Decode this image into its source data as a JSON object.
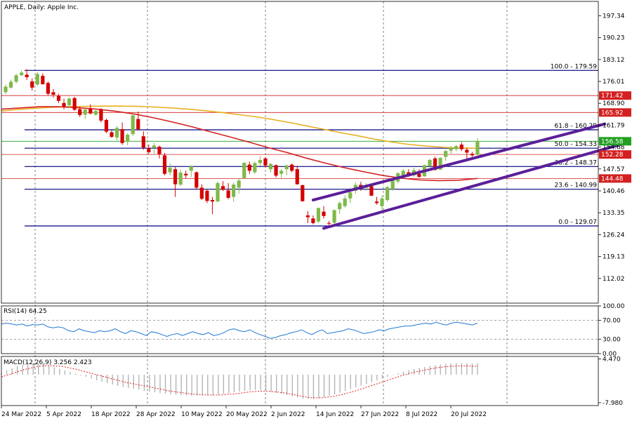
{
  "chart_data": {
    "type": "candlestick",
    "title": "APPLE, Daily:  Apple Inc.",
    "ylim": [
      104,
      202
    ],
    "y_ticks": [
      "197.34",
      "190.23",
      "183.12",
      "176.01",
      "168.90",
      "161.79",
      "154.68",
      "147.57",
      "140.46",
      "133.35",
      "126.24",
      "119.13",
      "112.02"
    ],
    "x_labels": [
      "24 Mar 2022",
      "5 Apr 2022",
      "18 Apr 2022",
      "28 Apr 2022",
      "10 May 2022",
      "20 May 2022",
      "2 Jun 2022",
      "14 Jun 2022",
      "27 Jun 2022",
      "8 Jul 2022",
      "20 Jul 2022"
    ],
    "candles": [
      {
        "o": 172.5,
        "h": 175.0,
        "l": 171.8,
        "c": 174.3
      },
      {
        "o": 174.0,
        "h": 176.6,
        "l": 173.7,
        "c": 175.9
      },
      {
        "o": 175.9,
        "h": 178.5,
        "l": 175.3,
        "c": 178.0
      },
      {
        "o": 178.0,
        "h": 179.6,
        "l": 177.8,
        "c": 178.9
      },
      {
        "o": 178.2,
        "h": 180.0,
        "l": 176.5,
        "c": 177.4
      },
      {
        "o": 176.0,
        "h": 177.0,
        "l": 173.0,
        "c": 174.0
      },
      {
        "o": 175.0,
        "h": 179.0,
        "l": 174.5,
        "c": 178.4
      },
      {
        "o": 177.8,
        "h": 178.6,
        "l": 175.0,
        "c": 175.1
      },
      {
        "o": 175.5,
        "h": 176.0,
        "l": 171.5,
        "c": 172.0
      },
      {
        "o": 172.5,
        "h": 173.5,
        "l": 170.8,
        "c": 171.7
      },
      {
        "o": 171.3,
        "h": 172.0,
        "l": 169.0,
        "c": 169.7
      },
      {
        "o": 169.0,
        "h": 170.4,
        "l": 167.0,
        "c": 167.9
      },
      {
        "o": 168.3,
        "h": 170.9,
        "l": 167.5,
        "c": 170.4
      },
      {
        "o": 170.6,
        "h": 171.0,
        "l": 166.5,
        "c": 166.8
      },
      {
        "o": 167.0,
        "h": 167.8,
        "l": 164.5,
        "c": 165.1
      },
      {
        "o": 165.2,
        "h": 167.0,
        "l": 163.8,
        "c": 166.9
      },
      {
        "o": 167.2,
        "h": 168.6,
        "l": 165.3,
        "c": 165.6
      },
      {
        "o": 165.2,
        "h": 167.0,
        "l": 164.9,
        "c": 166.4
      },
      {
        "o": 167.0,
        "h": 167.3,
        "l": 162.7,
        "c": 163.3
      },
      {
        "o": 163.5,
        "h": 163.9,
        "l": 159.2,
        "c": 159.7
      },
      {
        "o": 159.5,
        "h": 160.3,
        "l": 157.7,
        "c": 158.0
      },
      {
        "o": 157.8,
        "h": 161.5,
        "l": 156.8,
        "c": 160.9
      },
      {
        "o": 160.5,
        "h": 162.7,
        "l": 155.4,
        "c": 156.0
      },
      {
        "o": 156.5,
        "h": 159.2,
        "l": 155.3,
        "c": 158.7
      },
      {
        "o": 158.9,
        "h": 165.7,
        "l": 158.3,
        "c": 165.0
      },
      {
        "o": 163.8,
        "h": 166.2,
        "l": 160.0,
        "c": 160.5
      },
      {
        "o": 158.2,
        "h": 159.8,
        "l": 153.8,
        "c": 154.5
      },
      {
        "o": 154.3,
        "h": 155.5,
        "l": 152.5,
        "c": 153.0
      },
      {
        "o": 154.5,
        "h": 156.0,
        "l": 152.5,
        "c": 155.2
      },
      {
        "o": 154.8,
        "h": 155.2,
        "l": 151.0,
        "c": 152.4
      },
      {
        "o": 152.0,
        "h": 152.8,
        "l": 145.5,
        "c": 146.0
      },
      {
        "o": 146.5,
        "h": 149.5,
        "l": 145.5,
        "c": 148.0
      },
      {
        "o": 147.5,
        "h": 148.2,
        "l": 138.5,
        "c": 142.6
      },
      {
        "o": 142.5,
        "h": 147.4,
        "l": 142.0,
        "c": 146.4
      },
      {
        "o": 146.0,
        "h": 147.0,
        "l": 144.5,
        "c": 145.5
      },
      {
        "o": 147.0,
        "h": 148.8,
        "l": 145.0,
        "c": 148.4
      },
      {
        "o": 146.5,
        "h": 146.8,
        "l": 140.9,
        "c": 141.5
      },
      {
        "o": 141.5,
        "h": 142.6,
        "l": 137.5,
        "c": 137.9
      },
      {
        "o": 140.5,
        "h": 141.0,
        "l": 136.5,
        "c": 137.2
      },
      {
        "o": 137.5,
        "h": 138.5,
        "l": 132.9,
        "c": 137.0
      },
      {
        "o": 137.0,
        "h": 143.5,
        "l": 136.8,
        "c": 143.0
      },
      {
        "o": 142.0,
        "h": 143.6,
        "l": 140.4,
        "c": 140.8
      },
      {
        "o": 140.6,
        "h": 143.0,
        "l": 137.8,
        "c": 138.2
      },
      {
        "o": 138.5,
        "h": 143.2,
        "l": 137.0,
        "c": 142.5
      },
      {
        "o": 141.5,
        "h": 144.5,
        "l": 139.6,
        "c": 143.8
      },
      {
        "o": 144.5,
        "h": 149.7,
        "l": 144.5,
        "c": 149.6
      },
      {
        "o": 149.0,
        "h": 150.0,
        "l": 146.0,
        "c": 147.0
      },
      {
        "o": 146.5,
        "h": 150.0,
        "l": 146.0,
        "c": 149.5
      },
      {
        "o": 149.5,
        "h": 151.7,
        "l": 148.5,
        "c": 150.5
      },
      {
        "o": 151.0,
        "h": 151.5,
        "l": 148.0,
        "c": 148.7
      },
      {
        "o": 147.5,
        "h": 149.5,
        "l": 146.5,
        "c": 149.2
      },
      {
        "o": 148.8,
        "h": 149.0,
        "l": 144.8,
        "c": 145.4
      },
      {
        "o": 146.0,
        "h": 147.5,
        "l": 144.5,
        "c": 147.0
      },
      {
        "o": 147.5,
        "h": 149.0,
        "l": 145.5,
        "c": 148.7
      },
      {
        "o": 149.0,
        "h": 149.3,
        "l": 146.5,
        "c": 147.0
      },
      {
        "o": 147.5,
        "h": 148.6,
        "l": 142.5,
        "c": 142.6
      },
      {
        "o": 142.3,
        "h": 142.5,
        "l": 137.0,
        "c": 137.1
      },
      {
        "o": 132.5,
        "h": 133.9,
        "l": 130.0,
        "c": 131.9
      },
      {
        "o": 131.5,
        "h": 132.5,
        "l": 129.6,
        "c": 130.0
      },
      {
        "o": 130.5,
        "h": 135.0,
        "l": 130.0,
        "c": 134.9
      },
      {
        "o": 133.7,
        "h": 135.5,
        "l": 131.5,
        "c": 132.3
      },
      {
        "o": 130.0,
        "h": 130.7,
        "l": 129.0,
        "c": 129.8
      },
      {
        "o": 130.1,
        "h": 134.5,
        "l": 129.8,
        "c": 134.2
      },
      {
        "o": 134.5,
        "h": 137.0,
        "l": 133.0,
        "c": 136.5
      },
      {
        "o": 135.5,
        "h": 139.0,
        "l": 135.0,
        "c": 138.0
      },
      {
        "o": 138.0,
        "h": 141.5,
        "l": 136.5,
        "c": 140.0
      },
      {
        "o": 140.5,
        "h": 143.3,
        "l": 139.5,
        "c": 142.4
      },
      {
        "o": 142.4,
        "h": 143.4,
        "l": 140.5,
        "c": 141.1
      },
      {
        "o": 141.5,
        "h": 143.0,
        "l": 140.5,
        "c": 142.2
      },
      {
        "o": 142.0,
        "h": 142.5,
        "l": 138.7,
        "c": 138.9
      },
      {
        "o": 137.0,
        "h": 138.5,
        "l": 136.0,
        "c": 136.5
      },
      {
        "o": 135.5,
        "h": 139.0,
        "l": 133.8,
        "c": 138.0
      },
      {
        "o": 137.5,
        "h": 142.0,
        "l": 137.0,
        "c": 141.7
      },
      {
        "o": 141.0,
        "h": 144.3,
        "l": 140.5,
        "c": 143.9
      },
      {
        "o": 143.5,
        "h": 146.5,
        "l": 143.0,
        "c": 146.2
      },
      {
        "o": 145.5,
        "h": 147.5,
        "l": 145.0,
        "c": 147.0
      },
      {
        "o": 146.5,
        "h": 147.5,
        "l": 145.0,
        "c": 145.5
      },
      {
        "o": 145.5,
        "h": 148.0,
        "l": 145.0,
        "c": 147.2
      },
      {
        "o": 146.0,
        "h": 147.5,
        "l": 144.7,
        "c": 145.0
      },
      {
        "o": 145.2,
        "h": 149.0,
        "l": 145.0,
        "c": 148.8
      },
      {
        "o": 148.5,
        "h": 150.9,
        "l": 148.0,
        "c": 150.5
      },
      {
        "o": 151.0,
        "h": 151.5,
        "l": 147.0,
        "c": 147.3
      },
      {
        "o": 147.4,
        "h": 151.4,
        "l": 147.2,
        "c": 151.2
      },
      {
        "o": 151.5,
        "h": 153.8,
        "l": 150.2,
        "c": 153.4
      },
      {
        "o": 153.5,
        "h": 155.0,
        "l": 152.5,
        "c": 154.5
      },
      {
        "o": 154.0,
        "h": 155.4,
        "l": 153.3,
        "c": 155.0
      },
      {
        "o": 155.5,
        "h": 156.3,
        "l": 153.4,
        "c": 154.0
      },
      {
        "o": 153.8,
        "h": 154.5,
        "l": 151.0,
        "c": 152.9
      },
      {
        "o": 152.5,
        "h": 153.1,
        "l": 151.5,
        "c": 152.0
      },
      {
        "o": 152.2,
        "h": 157.6,
        "l": 152.0,
        "c": 156.6
      }
    ],
    "ma_series": [
      {
        "color": "#e8b020",
        "values": [
          166.4,
          166.9,
          167.3,
          167.6,
          167.8,
          167.9,
          168.0,
          168.0,
          167.9,
          167.7,
          167.4,
          167.0,
          166.5,
          165.9,
          165.2,
          164.5,
          163.6,
          162.6,
          161.5,
          160.4,
          159.3,
          158.3,
          157.2,
          156.3,
          155.5,
          155.0,
          154.6,
          154.4,
          154.3
        ]
      },
      {
        "color": "#d42020",
        "values": [
          167.0,
          167.4,
          167.8,
          167.8,
          167.5,
          167.0,
          166.3,
          165.4,
          164.2,
          162.8,
          161.3,
          159.6,
          158.0,
          156.3,
          154.5,
          152.9,
          151.1,
          149.5,
          148.0,
          146.7,
          145.5,
          144.6,
          144.0,
          143.8,
          143.9,
          144.5
        ]
      }
    ],
    "fibonacci": [
      {
        "label": "100.0 - 179.59",
        "value": 179.59
      },
      {
        "label": "61.8 - 160.29",
        "value": 160.29
      },
      {
        "label": "50.0 - 154.33",
        "value": 154.33
      },
      {
        "label": "38.2 - 148.37",
        "value": 148.37
      },
      {
        "label": "23.6 - 140.99",
        "value": 140.99
      },
      {
        "label": "0.0 - 129.07",
        "value": 129.07
      }
    ],
    "hlines": [
      {
        "value": 171.42,
        "label": "171.42",
        "color": "#d42020"
      },
      {
        "value": 165.92,
        "label": "165.92",
        "color": "#d42020"
      },
      {
        "value": 152.28,
        "label": "152.28",
        "color": "#d42020"
      },
      {
        "value": 144.48,
        "label": "144.48",
        "color": "#d42020"
      },
      {
        "value": 156.58,
        "label": "156.58",
        "color": "#21a021"
      }
    ],
    "channel": [
      {
        "from": [
          58,
          137.5
        ],
        "to": [
          113,
          162.2
        ]
      },
      {
        "from": [
          60,
          128.3
        ],
        "to": [
          117,
          156.0
        ]
      }
    ],
    "colors": {
      "bull": "#7fb94a",
      "bear": "#d40000",
      "fib": "#000080",
      "channel": "#5b1f99",
      "rsi": "#1f77d4",
      "macd_signal": "#e02020",
      "macd_hist": "#b0b0b0"
    },
    "rsi": {
      "label": "RSI(14) 64.25",
      "ylim": [
        0,
        100
      ],
      "ticks": [
        "100.00",
        "70.00",
        "30.00",
        "0.00"
      ],
      "levels": [
        70,
        30
      ],
      "values": [
        62,
        64,
        62,
        60,
        62,
        58,
        61,
        60,
        62,
        56,
        54,
        56,
        54,
        48,
        46,
        52,
        48,
        46,
        44,
        48,
        46,
        48,
        52,
        46,
        42,
        48,
        46,
        42,
        38,
        46,
        44,
        40,
        36,
        40,
        42,
        38,
        42,
        46,
        42,
        40,
        44,
        38,
        40,
        44,
        50,
        52,
        48,
        46,
        50,
        44,
        40,
        36,
        32,
        34,
        38,
        40,
        44,
        46,
        50,
        44,
        40,
        46,
        50,
        42,
        44,
        46,
        48,
        52,
        50,
        46,
        42,
        44,
        46,
        50,
        48,
        52,
        54,
        56,
        58,
        58,
        60,
        62,
        64,
        62,
        66,
        62,
        60,
        64,
        66,
        64,
        62,
        60,
        64
      ]
    },
    "macd": {
      "label": "MACD(12,26,9) 3.256 2.423",
      "ylim": [
        -8.8,
        5.2
      ],
      "ticks": [
        "4.470",
        "-7.980"
      ],
      "hist": [
        0.5,
        1.2,
        1.8,
        2.4,
        2.9,
        3.1,
        3.2,
        3.0,
        2.8,
        2.5,
        2.1,
        1.7,
        1.2,
        0.8,
        0.3,
        -0.2,
        -0.6,
        -1.1,
        -1.6,
        -2.0,
        -2.4,
        -2.8,
        -3.2,
        -3.5,
        -3.8,
        -4.0,
        -4.3,
        -4.6,
        -4.8,
        -5.0,
        -5.2,
        -5.4,
        -5.6,
        -5.7,
        -5.8,
        -5.9,
        -6.0,
        -6.0,
        -6.0,
        -5.9,
        -5.8,
        -5.7,
        -5.5,
        -5.3,
        -5.0,
        -4.8,
        -4.6,
        -4.4,
        -4.3,
        -4.4,
        -4.6,
        -4.9,
        -5.2,
        -5.5,
        -5.8,
        -6.2,
        -6.5,
        -6.8,
        -6.9,
        -6.9,
        -6.7,
        -6.4,
        -6.0,
        -5.6,
        -5.1,
        -4.6,
        -4.1,
        -3.6,
        -3.1,
        -2.6,
        -2.1,
        -1.6,
        -1.1,
        -0.6,
        -0.1,
        0.4,
        0.9,
        1.3,
        1.6,
        1.9,
        2.2,
        2.5,
        2.7,
        2.9,
        3.1,
        3.2,
        3.3,
        3.3,
        3.3,
        3.2,
        3.3
      ],
      "signal": [
        -0.6,
        -0.2,
        0.3,
        0.8,
        1.3,
        1.7,
        2.1,
        2.4,
        2.5,
        2.6,
        2.5,
        2.4,
        2.2,
        1.9,
        1.6,
        1.2,
        0.8,
        0.4,
        0.0,
        -0.4,
        -0.8,
        -1.2,
        -1.6,
        -2.0,
        -2.3,
        -2.6,
        -2.9,
        -3.2,
        -3.5,
        -3.8,
        -4.1,
        -4.4,
        -4.7,
        -4.9,
        -5.1,
        -5.3,
        -5.5,
        -5.6,
        -5.7,
        -5.8,
        -5.8,
        -5.8,
        -5.7,
        -5.6,
        -5.5,
        -5.3,
        -5.1,
        -4.9,
        -4.8,
        -4.7,
        -4.7,
        -4.8,
        -4.9,
        -5.1,
        -5.3,
        -5.6,
        -5.9,
        -6.2,
        -6.5,
        -6.6,
        -6.6,
        -6.5,
        -6.3,
        -6.1,
        -5.8,
        -5.4,
        -5.0,
        -4.6,
        -4.1,
        -3.6,
        -3.1,
        -2.6,
        -2.1,
        -1.6,
        -1.1,
        -0.6,
        -0.1,
        0.3,
        0.7,
        1.0,
        1.3,
        1.6,
        1.9,
        2.1,
        2.3,
        2.4,
        2.5,
        2.5,
        2.5,
        2.4,
        2.4
      ]
    }
  }
}
